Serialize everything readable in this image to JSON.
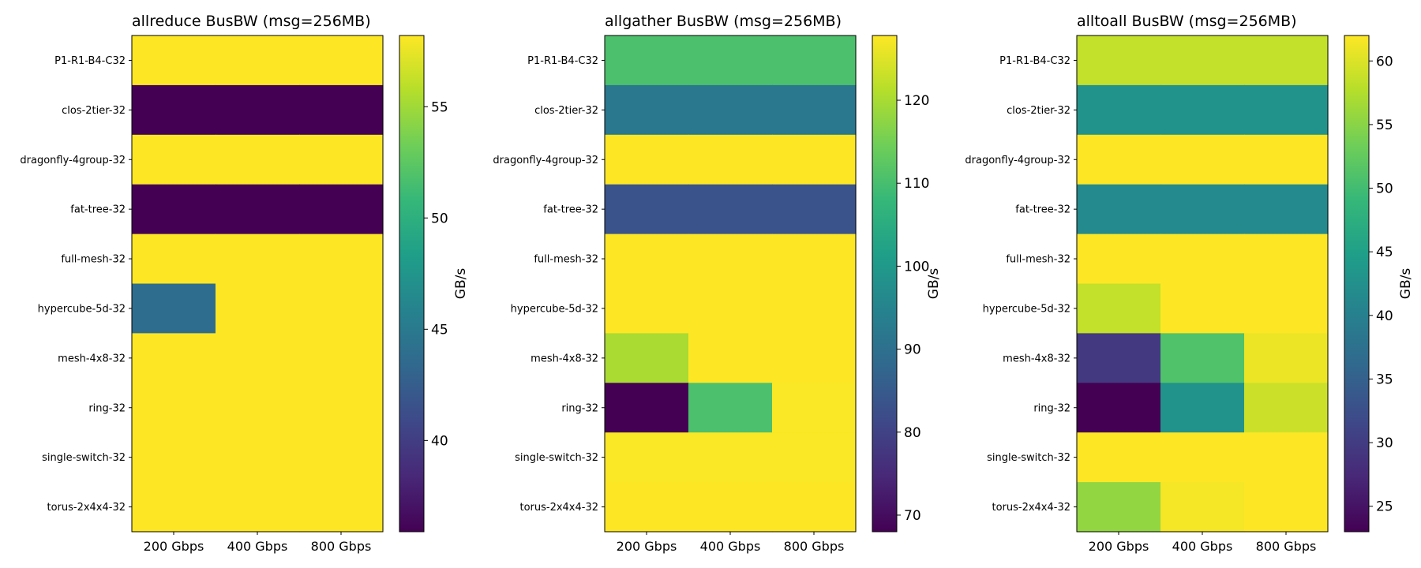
{
  "colorbar_label": "GB/s",
  "colormap": [
    "#440154",
    "#482878",
    "#3e4989",
    "#31688e",
    "#26828e",
    "#1f9e89",
    "#35b779",
    "#6ece58",
    "#b5de2b",
    "#fde725"
  ],
  "chart_data": [
    {
      "type": "heatmap",
      "title": "allreduce BusBW (msg=256MB)",
      "rows": [
        "P1-R1-B4-C32",
        "clos-2tier-32",
        "dragonfly-4group-32",
        "fat-tree-32",
        "full-mesh-32",
        "hypercube-5d-32",
        "mesh-4x8-32",
        "ring-32",
        "single-switch-32",
        "torus-2x4x4-32"
      ],
      "columns": [
        "200 Gbps",
        "400 Gbps",
        "800 Gbps"
      ],
      "values": [
        [
          58.2,
          58.2,
          58.2
        ],
        [
          35.9,
          35.9,
          35.9
        ],
        [
          58.2,
          58.2,
          58.2
        ],
        [
          35.9,
          35.9,
          35.9
        ],
        [
          58.2,
          58.2,
          58.2
        ],
        [
          43.8,
          58.2,
          58.2
        ],
        [
          58.2,
          58.2,
          58.2
        ],
        [
          58.2,
          58.2,
          58.2
        ],
        [
          58.2,
          58.2,
          58.2
        ],
        [
          58.2,
          58.2,
          58.2
        ]
      ],
      "vmin": 35.9,
      "vmax": 58.2,
      "colorbar_ticks": [
        40,
        45,
        50,
        55
      ],
      "colorbar_label": "GB/s"
    },
    {
      "type": "heatmap",
      "title": "allgather BusBW (msg=256MB)",
      "rows": [
        "P1-R1-B4-C32",
        "clos-2tier-32",
        "dragonfly-4group-32",
        "fat-tree-32",
        "full-mesh-32",
        "hypercube-5d-32",
        "mesh-4x8-32",
        "ring-32",
        "single-switch-32",
        "torus-2x4x4-32"
      ],
      "columns": [
        "200 Gbps",
        "400 Gbps",
        "800 Gbps"
      ],
      "values": [
        [
          110.5,
          110.5,
          110.5
        ],
        [
          92.0,
          92.0,
          92.0
        ],
        [
          127.8,
          127.8,
          127.8
        ],
        [
          83.5,
          83.5,
          83.5
        ],
        [
          127.8,
          127.8,
          127.8
        ],
        [
          127.8,
          127.8,
          127.8
        ],
        [
          120.0,
          127.8,
          127.8
        ],
        [
          68.0,
          110.5,
          127.5
        ],
        [
          127.5,
          127.5,
          127.5
        ],
        [
          127.8,
          127.8,
          127.8
        ]
      ],
      "vmin": 68.0,
      "vmax": 127.8,
      "colorbar_ticks": [
        70,
        80,
        90,
        100,
        110,
        120
      ],
      "colorbar_label": "GB/s"
    },
    {
      "type": "heatmap",
      "title": "alltoall BusBW (msg=256MB)",
      "rows": [
        "P1-R1-B4-C32",
        "clos-2tier-32",
        "dragonfly-4group-32",
        "fat-tree-32",
        "full-mesh-32",
        "hypercube-5d-32",
        "mesh-4x8-32",
        "ring-32",
        "single-switch-32",
        "torus-2x4x4-32"
      ],
      "columns": [
        "200 Gbps",
        "400 Gbps",
        "800 Gbps"
      ],
      "values": [
        [
          58.5,
          58.5,
          58.5
        ],
        [
          43.0,
          43.0,
          43.0
        ],
        [
          62.0,
          62.0,
          62.0
        ],
        [
          41.5,
          41.5,
          41.5
        ],
        [
          62.0,
          62.0,
          62.0
        ],
        [
          58.5,
          62.0,
          62.0
        ],
        [
          29.5,
          51.0,
          61.0
        ],
        [
          23.0,
          43.0,
          59.0
        ],
        [
          62.0,
          62.0,
          62.0
        ],
        [
          55.5,
          61.5,
          62.0
        ]
      ],
      "vmin": 23.0,
      "vmax": 62.0,
      "colorbar_ticks": [
        25,
        30,
        35,
        40,
        45,
        50,
        55,
        60
      ],
      "colorbar_label": "GB/s"
    }
  ]
}
